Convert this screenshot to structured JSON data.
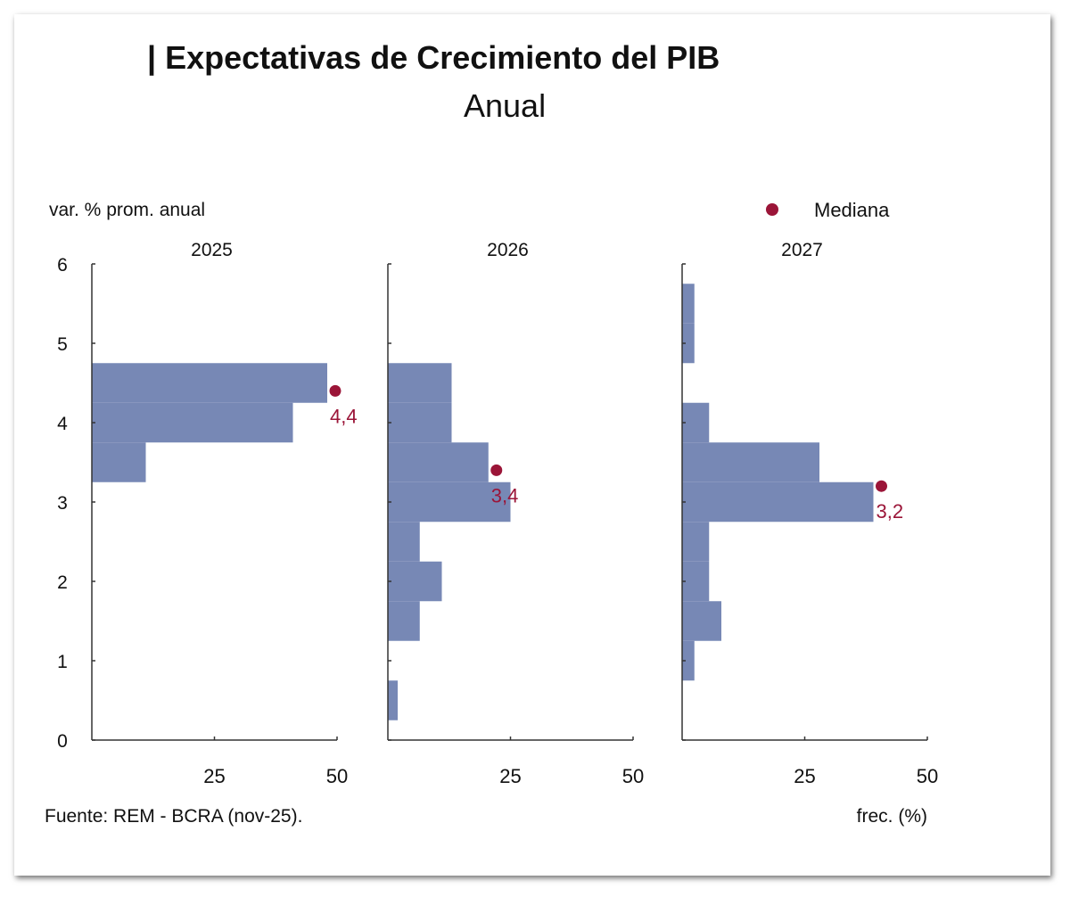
{
  "header": {
    "title": "| Expectativas de Crecimiento del PIB",
    "subtitle": "Anual"
  },
  "chart_data": {
    "type": "bar",
    "orientation": "horizontal",
    "ylabel": "var. % prom. anual",
    "xlabel": "frec. (%)",
    "source": "Fuente: REM - BCRA (nov-25).",
    "ylim": [
      0,
      6
    ],
    "yticks": [
      "0",
      "1",
      "2",
      "3",
      "4",
      "5",
      "6"
    ],
    "xlim": [
      0,
      50
    ],
    "xticks": [
      "25",
      "50"
    ],
    "bar_color": "#7788b5",
    "median_color": "#9b1538",
    "legend": {
      "label": "Mediana",
      "position": "top-right"
    },
    "bin_centers": [
      0.5,
      1.0,
      1.5,
      2.0,
      2.5,
      3.0,
      3.5,
      4.0,
      4.5,
      5.0,
      5.5
    ],
    "panels": [
      {
        "title": "2025",
        "values": [
          0,
          0,
          0,
          0,
          0,
          0,
          11,
          41,
          48,
          0,
          0
        ],
        "median": 4.4,
        "median_label": "4,4"
      },
      {
        "title": "2026",
        "values": [
          2,
          0,
          6.5,
          11,
          6.5,
          25,
          20.5,
          13,
          13,
          0,
          0
        ],
        "median": 3.4,
        "median_label": "3,4"
      },
      {
        "title": "2027",
        "values": [
          0,
          2.5,
          8,
          5.5,
          5.5,
          39,
          28,
          5.5,
          0,
          2.5,
          2.5
        ],
        "median": 3.2,
        "median_label": "3,2"
      }
    ]
  }
}
